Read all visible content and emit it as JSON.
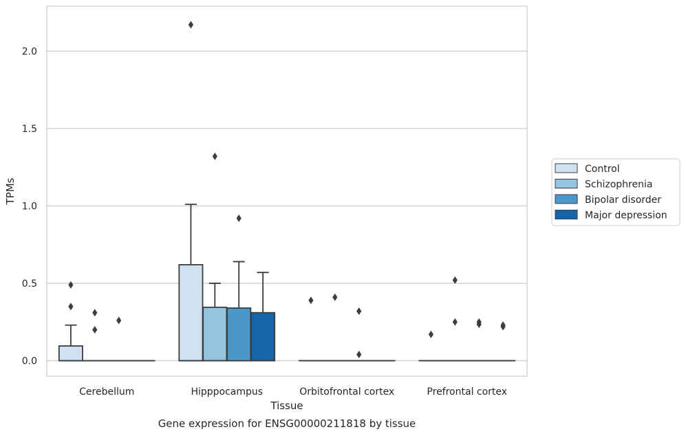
{
  "chart_data": {
    "type": "box",
    "title": "",
    "caption": "Gene expression for ENSG00000211818 by tissue",
    "xlabel": "Tissue",
    "ylabel": "TPMs",
    "ylim": [
      -0.1,
      2.29
    ],
    "yticks": [
      0.0,
      0.5,
      1.0,
      1.5,
      2.0
    ],
    "ytick_labels": [
      "0.0",
      "0.5",
      "1.0",
      "1.5",
      "2.0"
    ],
    "grid": "horizontal",
    "legend_position": "right",
    "categories": [
      "Cerebellum",
      "Hipppocampus",
      "Orbitofrontal cortex",
      "Prefrontal cortex"
    ],
    "series": [
      {
        "name": "Control",
        "color": "#d0e1f2",
        "boxes": [
          {
            "q1": 0.0,
            "median": 0.0,
            "q3": 0.095,
            "whisker_low": 0.0,
            "whisker_high": 0.23,
            "outliers": [
              0.35,
              0.49
            ]
          },
          {
            "q1": 0.0,
            "median": 0.0,
            "q3": 0.62,
            "whisker_low": 0.0,
            "whisker_high": 1.01,
            "outliers": [
              2.17
            ]
          },
          {
            "q1": 0.0,
            "median": 0.0,
            "q3": 0.0,
            "whisker_low": 0.0,
            "whisker_high": 0.0,
            "outliers": [
              0.39
            ]
          },
          {
            "q1": 0.0,
            "median": 0.0,
            "q3": 0.0,
            "whisker_low": 0.0,
            "whisker_high": 0.0,
            "outliers": [
              0.17
            ]
          }
        ]
      },
      {
        "name": "Schizophrenia",
        "color": "#94c4df",
        "boxes": [
          {
            "q1": 0.0,
            "median": 0.0,
            "q3": 0.0,
            "whisker_low": 0.0,
            "whisker_high": 0.0,
            "outliers": [
              0.2,
              0.31
            ]
          },
          {
            "q1": 0.0,
            "median": 0.0,
            "q3": 0.345,
            "whisker_low": 0.0,
            "whisker_high": 0.5,
            "outliers": [
              1.32
            ]
          },
          {
            "q1": 0.0,
            "median": 0.0,
            "q3": 0.0,
            "whisker_low": 0.0,
            "whisker_high": 0.0,
            "outliers": [
              0.41
            ]
          },
          {
            "q1": 0.0,
            "median": 0.0,
            "q3": 0.0,
            "whisker_low": 0.0,
            "whisker_high": 0.0,
            "outliers": [
              0.25,
              0.52
            ]
          }
        ]
      },
      {
        "name": "Bipolar disorder",
        "color": "#4a98c9",
        "boxes": [
          {
            "q1": 0.0,
            "median": 0.0,
            "q3": 0.0,
            "whisker_low": 0.0,
            "whisker_high": 0.0,
            "outliers": [
              0.26
            ]
          },
          {
            "q1": 0.0,
            "median": 0.0,
            "q3": 0.34,
            "whisker_low": 0.0,
            "whisker_high": 0.64,
            "outliers": [
              0.92
            ]
          },
          {
            "q1": 0.0,
            "median": 0.0,
            "q3": 0.0,
            "whisker_low": 0.0,
            "whisker_high": 0.0,
            "outliers": [
              0.04,
              0.32
            ]
          },
          {
            "q1": 0.0,
            "median": 0.0,
            "q3": 0.0,
            "whisker_low": 0.0,
            "whisker_high": 0.0,
            "outliers": [
              0.235,
              0.25
            ]
          }
        ]
      },
      {
        "name": "Major depression",
        "color": "#1764ab",
        "boxes": [
          {
            "q1": 0.0,
            "median": 0.0,
            "q3": 0.0,
            "whisker_low": 0.0,
            "whisker_high": 0.0,
            "outliers": []
          },
          {
            "q1": 0.0,
            "median": 0.0,
            "q3": 0.31,
            "whisker_low": 0.0,
            "whisker_high": 0.57,
            "outliers": []
          },
          {
            "q1": 0.0,
            "median": 0.0,
            "q3": 0.0,
            "whisker_low": 0.0,
            "whisker_high": 0.0,
            "outliers": []
          },
          {
            "q1": 0.0,
            "median": 0.0,
            "q3": 0.0,
            "whisker_low": 0.0,
            "whisker_high": 0.0,
            "outliers": [
              0.22,
              0.23
            ]
          }
        ]
      }
    ]
  }
}
